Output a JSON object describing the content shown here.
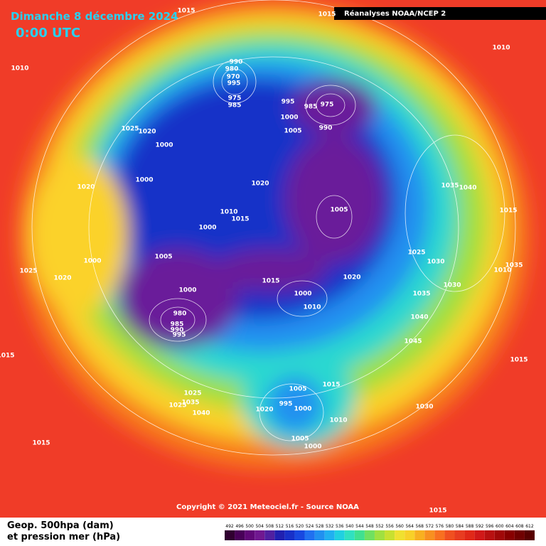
{
  "header": {
    "date": "Dimanche 8 décembre 2024",
    "time": "0:00 UTC",
    "source_title": "Réanalyses NOAA/NCEP 2"
  },
  "footer": {
    "copyright": "Copyright © 2021 Meteociel.fr - Source NOAA",
    "caption": [
      "Geop. 500hpa (dam)",
      "et pression mer (hPa)"
    ]
  },
  "colorbar": {
    "labels": [
      "492",
      "496",
      "500",
      "504",
      "508",
      "512",
      "516",
      "520",
      "524",
      "528",
      "532",
      "536",
      "540",
      "544",
      "548",
      "552",
      "556",
      "560",
      "564",
      "568",
      "572",
      "576",
      "580",
      "584",
      "588",
      "592",
      "596",
      "600",
      "604",
      "608",
      "612"
    ]
  },
  "pressure_labels": [
    "1015",
    "1015",
    "1010",
    "1010",
    "990",
    "980",
    "970",
    "995",
    "975",
    "985",
    "995",
    "1000",
    "985",
    "1005",
    "975",
    "990",
    "1025",
    "1020",
    "1000",
    "1000",
    "1020",
    "1020",
    "1035",
    "1040",
    "1010",
    "1015",
    "1000",
    "1005",
    "1015",
    "1005",
    "1000",
    "1025",
    "1030",
    "1010",
    "1035",
    "1025",
    "1020",
    "1015",
    "1020",
    "1000",
    "1000",
    "1035",
    "1030",
    "1010",
    "980",
    "985",
    "990",
    "995",
    "1040",
    "1045",
    "1015",
    "1015",
    "1005",
    "1015",
    "1025",
    "1035",
    "1025",
    "1040",
    "995",
    "1000",
    "1020",
    "1030",
    "1010",
    "1005",
    "1000",
    "1015",
    "1015"
  ]
}
